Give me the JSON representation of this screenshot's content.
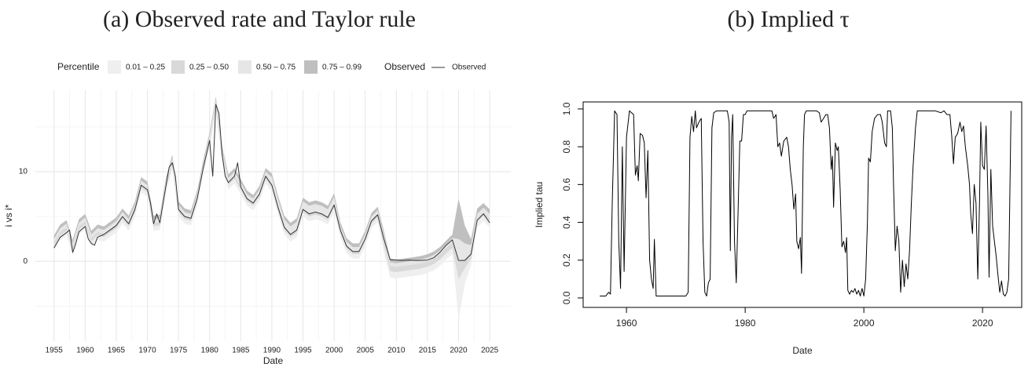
{
  "chart_data": [
    {
      "type": "band_line",
      "title": "(a) Observed rate and Taylor rule",
      "xlabel": "Date",
      "ylabel": "i vs i*",
      "xlim": [
        1952,
        2028.4
      ],
      "ylim": [
        -8.9,
        19.1
      ],
      "xticks": [
        1955,
        1960,
        1965,
        1970,
        1975,
        1980,
        1985,
        1990,
        1995,
        2000,
        2005,
        2010,
        2015,
        2020,
        2025
      ],
      "yticks": [
        0,
        10
      ],
      "yminor": [
        -5,
        5,
        15
      ],
      "grid": true,
      "fill_legend_title": "Percentile",
      "line_legend_title": "Observed",
      "bands": [
        {
          "name": "0.01 – 0.25",
          "color": "#efefef"
        },
        {
          "name": "0.25 – 0.50",
          "color": "#d9d9d9"
        },
        {
          "name": "0.50 – 0.75",
          "color": "#e6e6e6"
        },
        {
          "name": "0.75 – 0.99",
          "color": "#bfbfbf"
        }
      ],
      "band_x": [
        1955,
        1956,
        1957,
        1958,
        1959,
        1960,
        1961,
        1962,
        1963,
        1964,
        1965,
        1966,
        1967,
        1968,
        1969,
        1970,
        1971,
        1972,
        1973,
        1974,
        1975,
        1976,
        1977,
        1978,
        1979,
        1980,
        1981,
        1982,
        1983,
        1984,
        1985,
        1986,
        1987,
        1988,
        1989,
        1990,
        1991,
        1992,
        1993,
        1994,
        1995,
        1996,
        1997,
        1998,
        1999,
        2000,
        2001,
        2002,
        2003,
        2004,
        2005,
        2006,
        2007,
        2008,
        2009,
        2010,
        2011,
        2012,
        2013,
        2014,
        2015,
        2016,
        2017,
        2018,
        2019,
        2020,
        2021,
        2022,
        2023,
        2024,
        2025
      ],
      "quantiles": [
        [
          1.2,
          2.4,
          2.9,
          0.7,
          3.0,
          3.6,
          1.7,
          2.4,
          2.2,
          2.7,
          3.2,
          4.2,
          3.4,
          5.0,
          7.7,
          7.2,
          3.4,
          3.5,
          7.7,
          10.2,
          5.0,
          4.2,
          4.0,
          6.2,
          9.7,
          12.7,
          16.7,
          11.2,
          8.0,
          8.7,
          7.5,
          6.2,
          5.7,
          6.7,
          8.7,
          7.7,
          5.2,
          3.0,
          2.2,
          2.7,
          5.0,
          4.5,
          4.7,
          4.5,
          4.1,
          5.5,
          2.7,
          0.9,
          0.3,
          0.3,
          1.7,
          3.7,
          4.4,
          1.0,
          -1.8,
          -1.9,
          -1.8,
          -1.7,
          -1.6,
          -1.5,
          -1.3,
          -1.0,
          -0.5,
          0.2,
          0.8,
          -6.5,
          -2.5,
          -0.5,
          3.8,
          4.5,
          3.8
        ],
        [
          1.7,
          2.9,
          3.4,
          1.2,
          3.5,
          4.1,
          2.2,
          2.9,
          2.7,
          3.2,
          3.7,
          4.7,
          3.9,
          5.5,
          8.2,
          7.7,
          3.9,
          4.0,
          8.2,
          10.7,
          5.5,
          4.7,
          4.5,
          6.7,
          10.2,
          13.2,
          17.2,
          11.7,
          8.5,
          9.2,
          8.0,
          6.7,
          6.2,
          7.2,
          9.2,
          8.2,
          5.7,
          3.5,
          2.7,
          3.2,
          5.5,
          5.0,
          5.2,
          5.0,
          4.6,
          6.0,
          3.2,
          1.4,
          0.8,
          0.8,
          2.2,
          4.2,
          4.9,
          1.8,
          -1.1,
          -1.2,
          -1.1,
          -1.0,
          -0.9,
          -0.8,
          -0.6,
          -0.3,
          0.2,
          0.9,
          1.5,
          -2.0,
          -0.8,
          0.3,
          4.4,
          5.1,
          4.4
        ],
        [
          2.1,
          3.3,
          3.8,
          1.6,
          3.9,
          4.5,
          2.6,
          3.3,
          3.1,
          3.6,
          4.1,
          5.1,
          4.3,
          5.9,
          8.6,
          8.1,
          4.3,
          4.4,
          8.6,
          11.1,
          5.9,
          5.1,
          4.9,
          7.1,
          10.6,
          13.6,
          17.6,
          12.1,
          8.9,
          9.6,
          8.4,
          7.1,
          6.6,
          7.6,
          9.6,
          8.6,
          6.1,
          3.9,
          3.1,
          3.6,
          5.9,
          5.4,
          5.6,
          5.4,
          5.0,
          6.4,
          3.6,
          1.8,
          1.2,
          1.2,
          2.6,
          4.6,
          5.3,
          2.4,
          -0.5,
          -0.6,
          -0.5,
          -0.4,
          -0.3,
          -0.2,
          0.0,
          0.3,
          0.8,
          1.5,
          2.1,
          0.0,
          0.3,
          1.0,
          4.8,
          5.5,
          4.8
        ],
        [
          2.5,
          3.7,
          4.2,
          2.0,
          4.3,
          4.9,
          3.0,
          3.7,
          3.5,
          4.0,
          4.5,
          5.5,
          4.7,
          6.3,
          9.0,
          8.5,
          4.7,
          4.8,
          9.0,
          11.5,
          6.3,
          5.5,
          5.3,
          7.5,
          11.0,
          14.0,
          18.0,
          12.5,
          9.3,
          10.0,
          8.8,
          7.5,
          7.0,
          8.0,
          10.0,
          9.4,
          6.9,
          4.7,
          3.9,
          4.4,
          6.7,
          6.2,
          6.4,
          6.2,
          5.8,
          7.2,
          4.0,
          2.2,
          1.6,
          1.6,
          3.0,
          5.0,
          5.7,
          3.0,
          -0.1,
          -0.2,
          -0.1,
          0.0,
          0.1,
          0.2,
          0.4,
          0.7,
          1.2,
          1.9,
          2.6,
          2.5,
          2.0,
          1.8,
          5.3,
          6.0,
          5.3
        ],
        [
          2.9,
          4.1,
          4.6,
          2.4,
          4.7,
          5.3,
          3.4,
          4.1,
          3.9,
          4.4,
          4.9,
          5.9,
          5.1,
          6.7,
          9.4,
          8.9,
          5.1,
          5.2,
          9.4,
          11.9,
          6.7,
          5.9,
          5.7,
          7.9,
          11.4,
          14.4,
          18.4,
          12.9,
          9.7,
          10.4,
          9.2,
          7.9,
          7.4,
          8.4,
          10.4,
          9.8,
          7.3,
          5.1,
          4.3,
          4.8,
          7.1,
          6.6,
          6.8,
          6.6,
          6.2,
          7.6,
          4.4,
          2.6,
          2.0,
          2.0,
          3.4,
          5.4,
          6.1,
          3.4,
          0.3,
          0.2,
          0.3,
          0.4,
          0.5,
          0.6,
          0.8,
          1.1,
          1.6,
          2.3,
          3.0,
          7.0,
          4.0,
          2.5,
          5.9,
          6.5,
          5.8
        ]
      ],
      "series": [
        {
          "name": "Observed",
          "color": "#333333",
          "x": [
            1955,
            1956,
            1957,
            1957.5,
            1958,
            1958.5,
            1959,
            1960,
            1960.5,
            1961,
            1961.5,
            1962,
            1963,
            1964,
            1965,
            1966,
            1967,
            1968,
            1969,
            1970,
            1970.5,
            1971,
            1971.5,
            1972,
            1973,
            1973.5,
            1974,
            1974.5,
            1975,
            1976,
            1977,
            1978,
            1979,
            1980,
            1980.5,
            1981,
            1981.5,
            1982,
            1982.5,
            1983,
            1984,
            1984.5,
            1985,
            1986,
            1987,
            1988,
            1989,
            1990,
            1991,
            1992,
            1993,
            1994,
            1995,
            1996,
            1997,
            1998,
            1999,
            2000,
            2001,
            2002,
            2003,
            2004,
            2005,
            2006,
            2007,
            2008,
            2009,
            2010,
            2011,
            2012,
            2013,
            2014,
            2015,
            2016,
            2017,
            2018,
            2019,
            2020,
            2021,
            2022,
            2023,
            2024,
            2025
          ],
          "values": [
            1.5,
            2.7,
            3.2,
            3.5,
            1.0,
            2.0,
            3.3,
            3.9,
            2.5,
            2.0,
            1.8,
            2.7,
            3.0,
            3.5,
            4.0,
            5.0,
            4.2,
            5.8,
            8.5,
            8.0,
            6.5,
            4.2,
            5.3,
            4.3,
            8.5,
            10.5,
            11.0,
            9.5,
            5.8,
            5.0,
            4.8,
            7.0,
            10.5,
            13.5,
            9.5,
            17.5,
            16.5,
            12.0,
            9.5,
            8.8,
            9.5,
            11.0,
            8.3,
            7.0,
            6.5,
            7.5,
            9.5,
            8.5,
            6.0,
            3.8,
            3.0,
            3.5,
            5.8,
            5.3,
            5.5,
            5.3,
            4.9,
            6.3,
            3.5,
            1.7,
            1.1,
            1.1,
            2.5,
            4.5,
            5.2,
            2.5,
            0.2,
            0.15,
            0.1,
            0.15,
            0.1,
            0.1,
            0.15,
            0.4,
            1.0,
            1.8,
            2.4,
            0.1,
            0.1,
            0.8,
            4.6,
            5.3,
            4.3
          ]
        }
      ]
    },
    {
      "type": "line",
      "title": "(b) Implied τ",
      "xlabel": "Date",
      "ylabel": "Implied tau",
      "xlim": [
        1952.7,
        2026.6
      ],
      "ylim": [
        -0.05,
        1.037
      ],
      "xticks": [
        1960,
        1980,
        2000,
        2020
      ],
      "yticks": [
        {
          "value": 0,
          "label": "0.0"
        },
        0.2,
        0.4,
        0.6,
        0.8,
        {
          "value": 1,
          "label": "1.0"
        }
      ],
      "grid": false,
      "series": [
        {
          "color": "#000000",
          "x": [
            1955.5,
            1956.5,
            1957.0,
            1957.3,
            1957.6,
            1958.0,
            1958.4,
            1958.7,
            1959.0,
            1959.3,
            1959.6,
            1960.0,
            1960.5,
            1961.2,
            1961.5,
            1961.8,
            1962.0,
            1962.3,
            1962.7,
            1963.0,
            1963.3,
            1963.6,
            1963.9,
            1964.2,
            1964.5,
            1964.7,
            1965.0,
            1966.0,
            1968.0,
            1970.0,
            1970.4,
            1970.7,
            1971.0,
            1971.3,
            1971.6,
            1971.8,
            1972.2,
            1972.6,
            1972.9,
            1973.2,
            1973.5,
            1973.8,
            1974.1,
            1974.4,
            1974.7,
            1975.2,
            1977.0,
            1977.3,
            1977.5,
            1977.7,
            1977.9,
            1978.2,
            1978.5,
            1978.8,
            1979.1,
            1979.4,
            1979.7,
            1980.0,
            1980.3,
            1983.0,
            1984.5,
            1984.8,
            1985.2,
            1985.5,
            1985.8,
            1986.1,
            1986.5,
            1987.0,
            1987.3,
            1987.6,
            1987.9,
            1988.2,
            1988.5,
            1988.7,
            1989.0,
            1989.3,
            1989.5,
            1989.8,
            1990.0,
            1990.3,
            1992.0,
            1992.5,
            1992.8,
            1993.2,
            1993.6,
            1993.9,
            1994.2,
            1994.5,
            1994.7,
            1994.9,
            1995.2,
            1995.5,
            1995.7,
            1996.0,
            1996.3,
            1996.6,
            1996.9,
            1997.1,
            1997.3,
            1997.6,
            1997.9,
            1998.2,
            1998.5,
            1998.8,
            1999.1,
            1999.4,
            1999.7,
            2000.0,
            2000.3,
            2000.6,
            2000.8,
            2001.1,
            2001.4,
            2001.8,
            2002.3,
            2002.8,
            2003.1,
            2003.5,
            2003.8,
            2004.0,
            2004.5,
            2004.8,
            2005.0,
            2005.3,
            2005.6,
            2005.9,
            2006.2,
            2006.5,
            2006.8,
            2007.1,
            2007.4,
            2007.7,
            2008.0,
            2008.3,
            2008.7,
            2009.0,
            2012.0,
            2013.0,
            2013.5,
            2014.0,
            2014.5,
            2014.8,
            2015.1,
            2015.4,
            2015.8,
            2016.2,
            2016.5,
            2016.8,
            2017.1,
            2017.5,
            2017.8,
            2018.0,
            2018.3,
            2018.6,
            2018.9,
            2019.2,
            2019.5,
            2019.7,
            2020.0,
            2020.3,
            2020.6,
            2020.9,
            2021.1,
            2021.4,
            2021.7,
            2022.0,
            2022.3,
            2022.6,
            2022.9,
            2023.2,
            2023.5,
            2023.8,
            2024.1,
            2024.4,
            2024.8
          ],
          "values": [
            0.01,
            0.01,
            0.03,
            0.02,
            0.5,
            0.99,
            0.97,
            0.3,
            0.05,
            0.8,
            0.14,
            0.85,
            0.99,
            0.97,
            0.65,
            0.7,
            0.62,
            0.87,
            0.86,
            0.82,
            0.53,
            0.78,
            0.2,
            0.1,
            0.05,
            0.31,
            0.01,
            0.01,
            0.01,
            0.01,
            0.03,
            0.85,
            0.96,
            0.88,
            0.99,
            0.9,
            0.93,
            0.95,
            0.3,
            0.03,
            0.01,
            0.08,
            0.1,
            0.9,
            0.98,
            0.99,
            0.99,
            0.93,
            0.25,
            0.85,
            0.97,
            0.3,
            0.08,
            0.45,
            0.83,
            0.83,
            0.97,
            0.97,
            0.99,
            0.99,
            0.99,
            0.95,
            0.97,
            0.8,
            0.82,
            0.75,
            0.83,
            0.85,
            0.8,
            0.68,
            0.6,
            0.47,
            0.55,
            0.3,
            0.26,
            0.32,
            0.13,
            0.8,
            0.97,
            0.99,
            0.99,
            0.98,
            0.93,
            0.95,
            0.97,
            0.97,
            0.9,
            0.68,
            0.75,
            0.48,
            0.82,
            0.78,
            0.8,
            0.58,
            0.27,
            0.3,
            0.24,
            0.32,
            0.04,
            0.02,
            0.04,
            0.03,
            0.05,
            0.02,
            0.04,
            0.01,
            0.05,
            0.01,
            0.1,
            0.4,
            0.74,
            0.72,
            0.88,
            0.95,
            0.97,
            0.97,
            0.93,
            0.82,
            0.8,
            0.99,
            0.99,
            0.9,
            0.6,
            0.25,
            0.38,
            0.3,
            0.03,
            0.2,
            0.06,
            0.18,
            0.1,
            0.25,
            0.5,
            0.7,
            0.9,
            0.99,
            0.99,
            0.98,
            0.99,
            0.97,
            0.97,
            0.86,
            0.71,
            0.85,
            0.87,
            0.93,
            0.88,
            0.91,
            0.8,
            0.7,
            0.6,
            0.45,
            0.34,
            0.6,
            0.5,
            0.1,
            0.52,
            0.93,
            0.7,
            0.68,
            0.91,
            0.55,
            0.11,
            0.68,
            0.38,
            0.3,
            0.22,
            0.12,
            0.03,
            0.09,
            0.02,
            0.01,
            0.03,
            0.1,
            0.99
          ]
        }
      ]
    }
  ]
}
